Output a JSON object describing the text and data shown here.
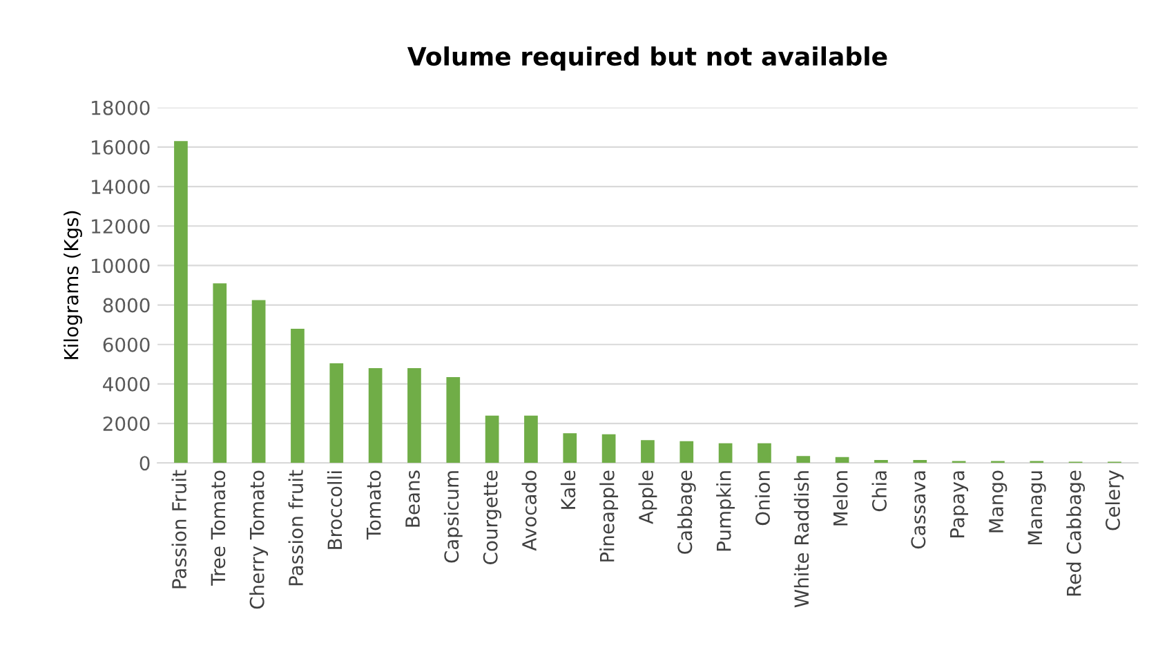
{
  "chart_data": {
    "type": "bar",
    "title": "Volume required but not available",
    "ylabel": "Kilograms (Kgs)",
    "categories": [
      "Passion Fruit",
      "Tree Tomato",
      "Cherry Tomato",
      "Passion fruit",
      "Broccolli",
      "Tomato",
      "Beans",
      "Capsicum",
      "Courgette",
      "Avocado",
      "Kale",
      "Pineapple",
      "Apple",
      "Cabbage",
      "Pumpkin",
      "Onion",
      "White Raddish",
      "Melon",
      "Chia",
      "Cassava",
      "Papaya",
      "Mango",
      "Managu",
      "Red Cabbage",
      "Celery"
    ],
    "values": [
      16300,
      9100,
      8250,
      6800,
      5050,
      4800,
      4800,
      4350,
      2400,
      2400,
      1500,
      1450,
      1150,
      1100,
      1000,
      1000,
      350,
      300,
      150,
      150,
      100,
      100,
      100,
      60,
      60
    ],
    "color": "#70ad47",
    "ylim": [
      0,
      18000
    ],
    "yticks": [
      0,
      2000,
      4000,
      6000,
      8000,
      10000,
      12000,
      14000,
      16000,
      18000
    ],
    "grid": "y",
    "legend": false
  }
}
